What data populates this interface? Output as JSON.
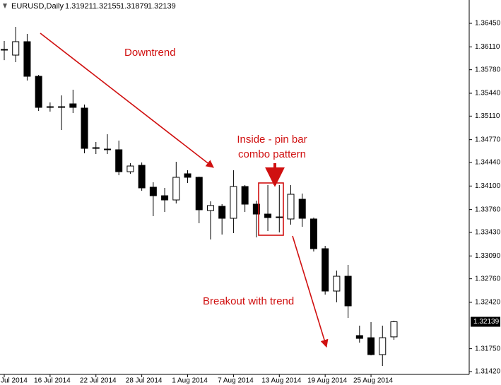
{
  "chart_data": {
    "type": "candlestick",
    "title": "EURUSD,Daily",
    "categories": [
      "Jul 2014",
      null,
      null,
      null,
      "16 Jul 2014",
      null,
      null,
      null,
      "22 Jul 2014",
      null,
      null,
      null,
      "28 Jul 2014",
      null,
      null,
      null,
      "1 Aug 2014",
      null,
      null,
      null,
      "7 Aug 2014",
      null,
      null,
      null,
      "13 Aug 2014",
      null,
      null,
      null,
      "19 Aug 2014",
      null,
      null,
      null,
      "25 Aug 2014",
      null,
      null
    ],
    "open": [
      1.36073,
      1.35991,
      1.36185,
      1.35685,
      1.35246,
      1.35246,
      1.35287,
      1.35226,
      1.34654,
      1.34634,
      1.34624,
      1.34307,
      1.34399,
      1.34083,
      1.3396,
      1.33899,
      1.34277,
      1.34226,
      1.33746,
      1.33807,
      1.33634,
      1.34093,
      1.33838,
      1.33695,
      1.33654,
      1.33624,
      1.33909,
      1.33624,
      1.33195,
      1.32583,
      1.32797,
      1.3194,
      1.31909,
      1.31665,
      1.31921
    ],
    "high": [
      1.36195,
      1.36399,
      1.36297,
      1.35705,
      1.35307,
      1.35409,
      1.35491,
      1.35277,
      1.34736,
      1.34848,
      1.34756,
      1.3443,
      1.3444,
      1.34154,
      1.34073,
      1.3445,
      1.34328,
      1.34236,
      1.33879,
      1.33838,
      1.34328,
      1.34114,
      1.33889,
      1.34114,
      1.34114,
      1.34114,
      1.33991,
      1.33644,
      1.33236,
      1.32879,
      1.32961,
      1.32083,
      1.32134,
      1.32083,
      1.32155
    ],
    "low": [
      1.35919,
      1.35889,
      1.35624,
      1.35185,
      1.35175,
      1.34909,
      1.35154,
      1.34573,
      1.34562,
      1.34562,
      1.34256,
      1.34277,
      1.34032,
      1.33665,
      1.33726,
      1.33848,
      1.34144,
      1.33563,
      1.33328,
      1.33399,
      1.3342,
      1.33726,
      1.33358,
      1.3345,
      1.3343,
      1.33542,
      1.33511,
      1.33154,
      1.32532,
      1.3242,
      1.32195,
      1.31838,
      1.31654,
      1.31501,
      1.31879
    ],
    "close": [
      1.36063,
      1.36185,
      1.35685,
      1.35236,
      1.35246,
      1.35236,
      1.35236,
      1.34644,
      1.34644,
      1.34624,
      1.34307,
      1.34389,
      1.34073,
      1.3396,
      1.33899,
      1.34226,
      1.34226,
      1.33757,
      1.33818,
      1.33634,
      1.34093,
      1.33838,
      1.33695,
      1.33644,
      1.33644,
      1.33981,
      1.33634,
      1.33195,
      1.32583,
      1.32797,
      1.32369,
      1.31899,
      1.31665,
      1.31909,
      1.32139
    ],
    "up_color": "#ffffff",
    "down_color": "#000000",
    "edge_color": "#000000",
    "ylim": [
      1.31379,
      1.36787
    ],
    "yticks": [
      {
        "value": 1.3645,
        "label": "1.36450"
      },
      {
        "value": 1.3611,
        "label": "1.36110"
      },
      {
        "value": 1.3578,
        "label": "1.35780"
      },
      {
        "value": 1.3544,
        "label": "1.35440"
      },
      {
        "value": 1.3511,
        "label": "1.35110"
      },
      {
        "value": 1.3477,
        "label": "1.34770"
      },
      {
        "value": 1.3444,
        "label": "1.34440"
      },
      {
        "value": 1.341,
        "label": "1.34100"
      },
      {
        "value": 1.3376,
        "label": "1.33760"
      },
      {
        "value": 1.3343,
        "label": "1.33430"
      },
      {
        "value": 1.3309,
        "label": "1.33090"
      },
      {
        "value": 1.3276,
        "label": "1.32760"
      },
      {
        "value": 1.3242,
        "label": "1.32420"
      },
      {
        "value": 1.3175,
        "label": "1.31750"
      },
      {
        "value": 1.3142,
        "label": "1.31420"
      }
    ],
    "grid": false,
    "annotations": [
      "Downtrend",
      "Inside - pin bar",
      "combo pattern",
      "Breakout with trend"
    ]
  }
}
